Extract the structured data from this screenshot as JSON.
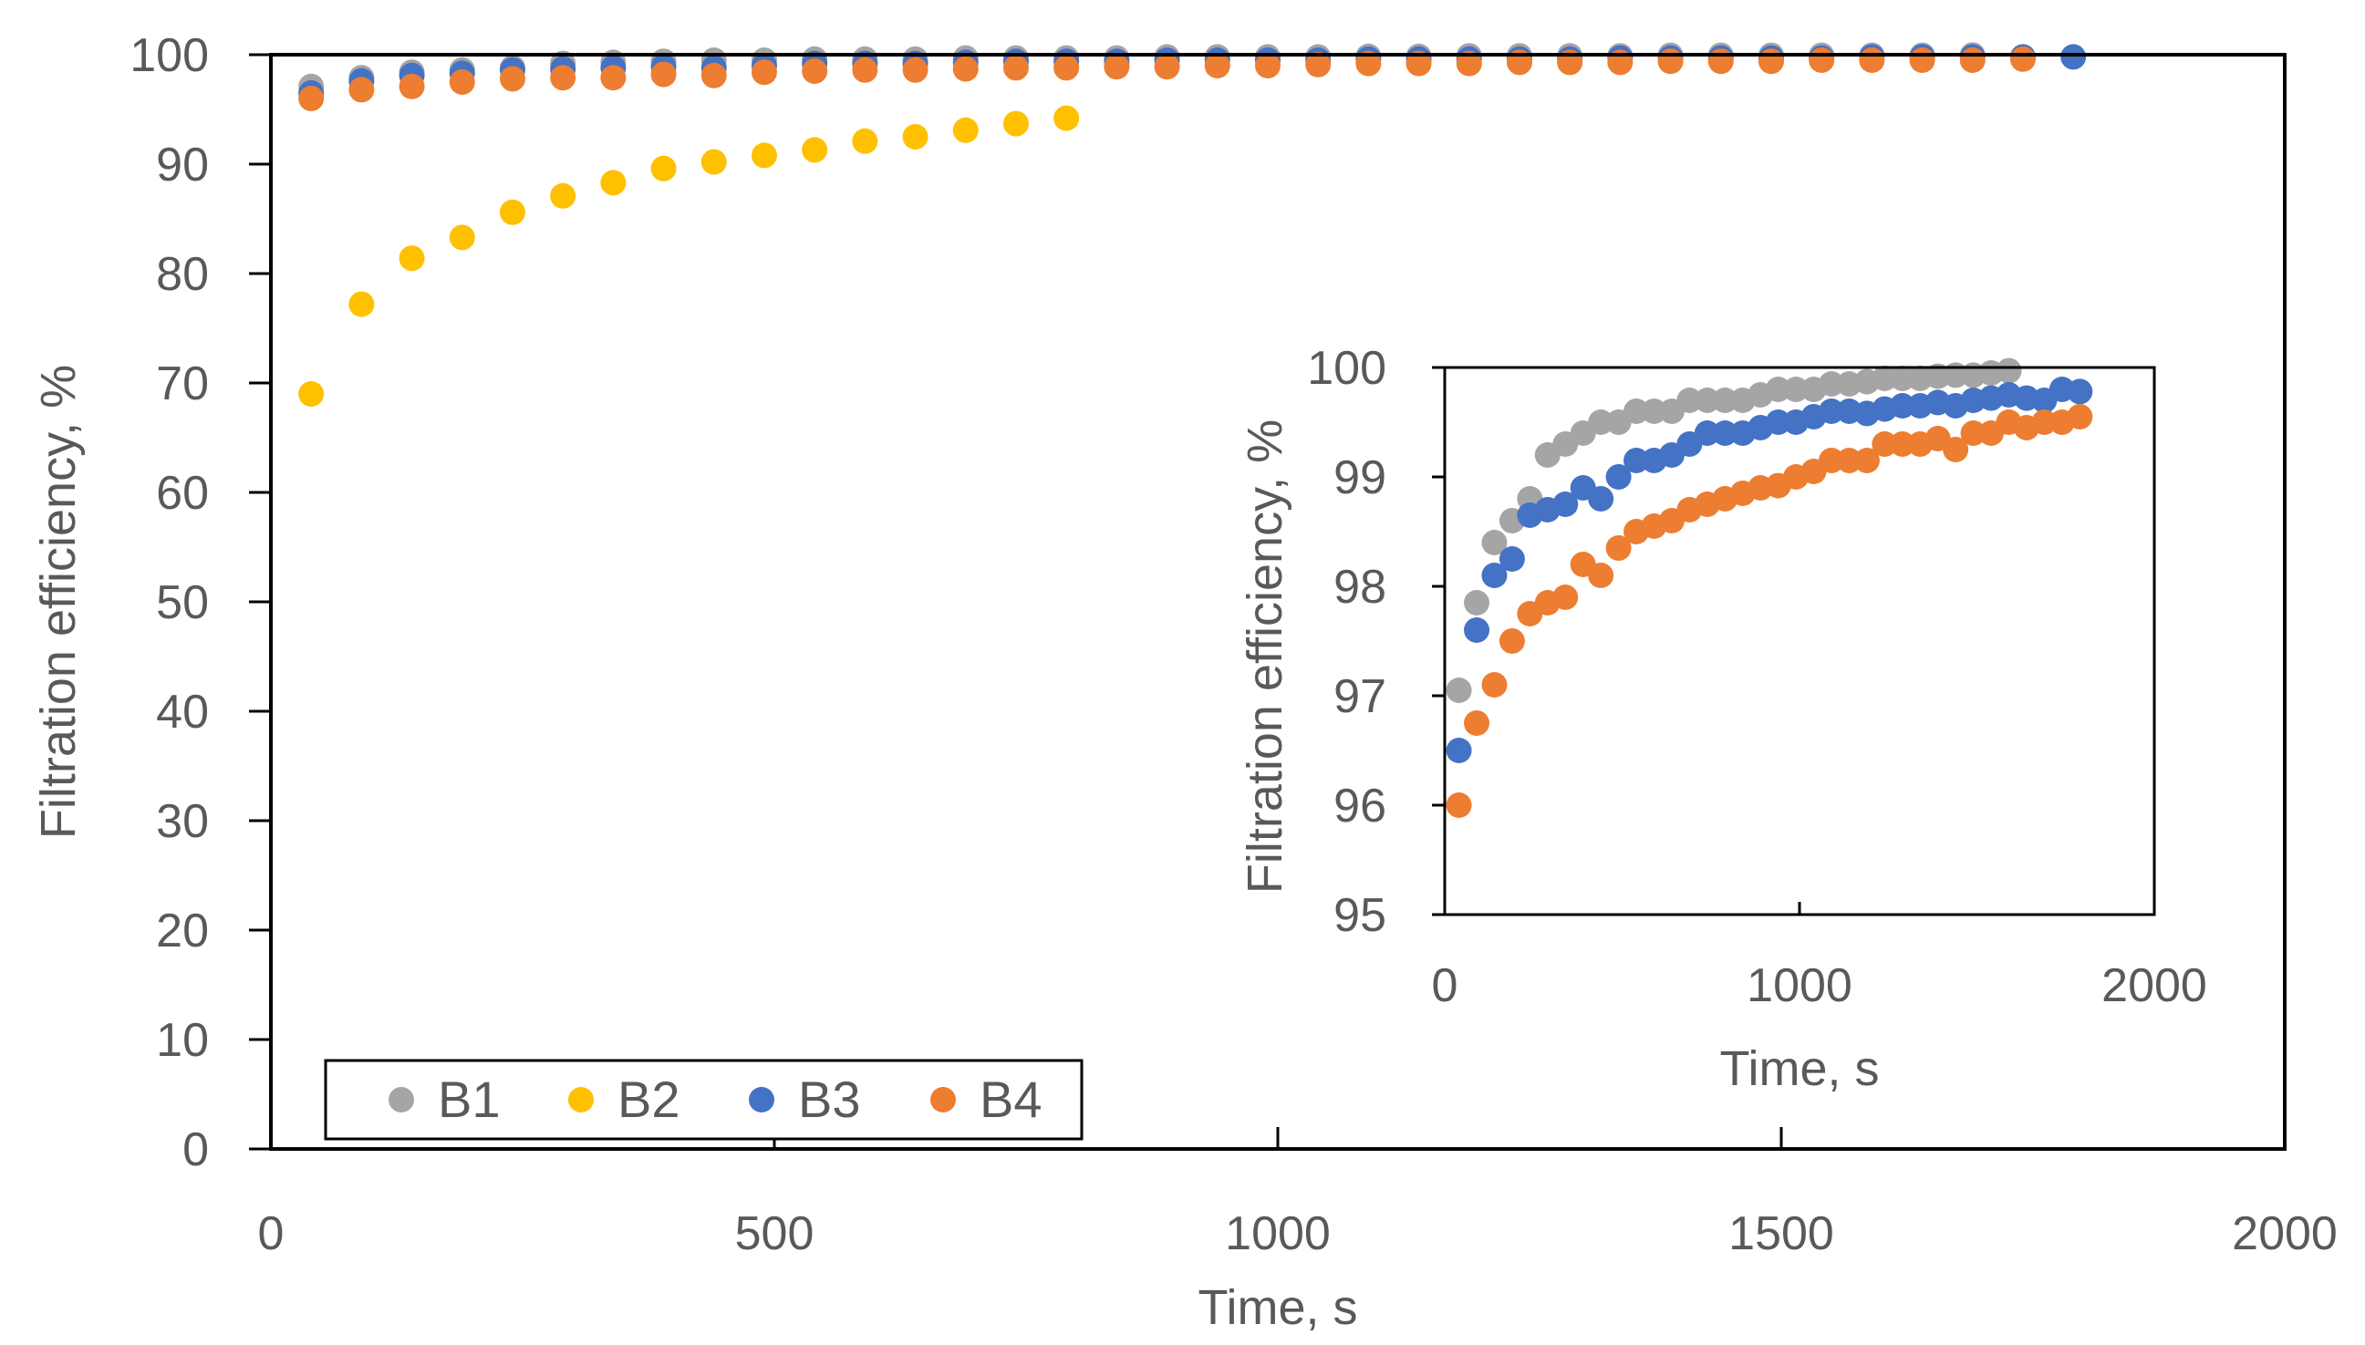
{
  "colors": {
    "B1": "#a5a5a5",
    "B2": "#ffc000",
    "B3": "#4472c4",
    "B4": "#ed7d31",
    "text": "#595959",
    "axis": "#000000"
  },
  "chart_data": [
    {
      "id": "main",
      "type": "scatter",
      "title": "",
      "xlabel": "Time, s",
      "ylabel": "Filtration efficiency, %",
      "xlim": [
        0,
        2000
      ],
      "ylim": [
        0,
        100
      ],
      "x_ticks": [
        0,
        500,
        1000,
        1500,
        2000
      ],
      "y_ticks": [
        0,
        10,
        20,
        30,
        40,
        50,
        60,
        70,
        80,
        90,
        100
      ],
      "x_tick_labels": [
        "0",
        "500",
        "1000",
        "1500",
        "2000"
      ],
      "y_tick_labels": [
        "0",
        "10",
        "20",
        "30",
        "40",
        "50",
        "60",
        "70",
        "80",
        "90",
        "100"
      ],
      "legend_position": "bottom-left",
      "legend": [
        "B1",
        "B2",
        "B3",
        "B4"
      ],
      "series": [
        {
          "name": "B1",
          "color": "#a5a5a5",
          "x": [
            40,
            90,
            140,
            190,
            240,
            290,
            340,
            390,
            440,
            490,
            540,
            590,
            640,
            690,
            740,
            790,
            840,
            890,
            940,
            990,
            1040,
            1090,
            1140,
            1190,
            1240,
            1290,
            1340,
            1390,
            1440,
            1490,
            1540,
            1590,
            1640,
            1690
          ],
          "y": [
            97.1,
            97.9,
            98.4,
            98.6,
            98.8,
            99.2,
            99.3,
            99.4,
            99.5,
            99.5,
            99.6,
            99.6,
            99.6,
            99.7,
            99.7,
            99.7,
            99.7,
            99.8,
            99.8,
            99.8,
            99.8,
            99.85,
            99.85,
            99.9,
            99.9,
            99.9,
            99.9,
            99.95,
            99.95,
            99.95,
            99.95,
            99.95,
            99.95,
            99.97
          ]
        },
        {
          "name": "B2",
          "color": "#ffc000",
          "x": [
            40,
            90,
            140,
            190,
            240,
            290,
            340,
            390,
            440,
            490,
            540,
            590,
            640,
            690,
            740,
            790
          ],
          "y": [
            69.0,
            77.2,
            81.4,
            83.3,
            85.6,
            87.1,
            88.3,
            89.6,
            90.2,
            90.8,
            91.3,
            92.1,
            92.5,
            93.1,
            93.7,
            94.2
          ]
        },
        {
          "name": "B3",
          "color": "#4472c4",
          "x": [
            40,
            90,
            140,
            190,
            240,
            290,
            340,
            390,
            440,
            490,
            540,
            590,
            640,
            690,
            740,
            790,
            840,
            890,
            940,
            990,
            1040,
            1090,
            1140,
            1190,
            1240,
            1290,
            1340,
            1390,
            1440,
            1490,
            1540,
            1590,
            1640,
            1690,
            1740,
            1790
          ],
          "y": [
            96.5,
            97.6,
            98.1,
            98.3,
            98.6,
            98.7,
            98.8,
            98.9,
            98.8,
            99.0,
            99.2,
            99.2,
            99.2,
            99.3,
            99.4,
            99.4,
            99.4,
            99.5,
            99.5,
            99.5,
            99.5,
            99.6,
            99.6,
            99.6,
            99.6,
            99.6,
            99.7,
            99.7,
            99.7,
            99.7,
            99.7,
            99.8,
            99.8,
            99.8,
            99.8,
            99.8
          ]
        },
        {
          "name": "B4",
          "color": "#ed7d31",
          "x": [
            40,
            90,
            140,
            190,
            240,
            290,
            340,
            390,
            440,
            490,
            540,
            590,
            640,
            690,
            740,
            790,
            840,
            890,
            940,
            990,
            1040,
            1090,
            1140,
            1190,
            1240,
            1290,
            1340,
            1390,
            1440,
            1490,
            1540,
            1590,
            1640,
            1690,
            1740
          ],
          "y": [
            96.0,
            96.8,
            97.1,
            97.5,
            97.8,
            97.9,
            97.9,
            98.2,
            98.1,
            98.4,
            98.5,
            98.6,
            98.6,
            98.7,
            98.8,
            98.8,
            98.9,
            98.9,
            99.0,
            99.0,
            99.1,
            99.2,
            99.2,
            99.2,
            99.3,
            99.3,
            99.3,
            99.4,
            99.4,
            99.4,
            99.5,
            99.5,
            99.5,
            99.5,
            99.6
          ]
        }
      ]
    },
    {
      "id": "inset",
      "type": "scatter",
      "title": "",
      "xlabel": "Time, s",
      "ylabel": "Filtration efficiency, %",
      "xlim": [
        0,
        2000
      ],
      "ylim": [
        95,
        100
      ],
      "x_ticks": [
        0,
        1000,
        2000
      ],
      "y_ticks": [
        95,
        96,
        97,
        98,
        99,
        100
      ],
      "x_tick_labels": [
        "0",
        "1000",
        "2000"
      ],
      "y_tick_labels": [
        "95",
        "96",
        "97",
        "98",
        "99",
        "100"
      ],
      "legend_position": "none",
      "series": [
        {
          "name": "B1",
          "color": "#a5a5a5",
          "x": [
            40,
            90,
            140,
            190,
            240,
            290,
            340,
            390,
            440,
            490,
            540,
            590,
            640,
            690,
            740,
            790,
            840,
            890,
            940,
            990,
            1040,
            1090,
            1140,
            1190,
            1240,
            1290,
            1340,
            1390,
            1440,
            1490,
            1540,
            1590
          ],
          "y": [
            97.05,
            97.85,
            98.4,
            98.6,
            98.8,
            99.2,
            99.3,
            99.4,
            99.5,
            99.5,
            99.6,
            99.6,
            99.6,
            99.7,
            99.7,
            99.7,
            99.7,
            99.75,
            99.8,
            99.8,
            99.8,
            99.85,
            99.85,
            99.87,
            99.9,
            99.9,
            99.9,
            99.92,
            99.93,
            99.93,
            99.95,
            99.97
          ]
        },
        {
          "name": "B3",
          "color": "#4472c4",
          "x": [
            40,
            90,
            140,
            190,
            240,
            290,
            340,
            390,
            440,
            490,
            540,
            590,
            640,
            690,
            740,
            790,
            840,
            890,
            940,
            990,
            1040,
            1090,
            1140,
            1190,
            1240,
            1290,
            1340,
            1390,
            1440,
            1490,
            1540,
            1590,
            1640,
            1690,
            1740,
            1790
          ],
          "y": [
            96.5,
            97.6,
            98.1,
            98.25,
            98.65,
            98.7,
            98.75,
            98.9,
            98.8,
            99.0,
            99.15,
            99.15,
            99.2,
            99.3,
            99.4,
            99.4,
            99.4,
            99.45,
            99.5,
            99.5,
            99.55,
            99.6,
            99.6,
            99.58,
            99.62,
            99.65,
            99.65,
            99.68,
            99.65,
            99.7,
            99.72,
            99.75,
            99.72,
            99.7,
            99.8,
            99.78
          ]
        },
        {
          "name": "B4",
          "color": "#ed7d31",
          "x": [
            40,
            90,
            140,
            190,
            240,
            290,
            340,
            390,
            440,
            490,
            540,
            590,
            640,
            690,
            740,
            790,
            840,
            890,
            940,
            990,
            1040,
            1090,
            1140,
            1190,
            1240,
            1290,
            1340,
            1390,
            1440,
            1490,
            1540,
            1590,
            1640,
            1690,
            1740,
            1790
          ],
          "y": [
            96.0,
            96.75,
            97.1,
            97.5,
            97.75,
            97.85,
            97.9,
            98.2,
            98.1,
            98.35,
            98.5,
            98.55,
            98.6,
            98.7,
            98.75,
            98.8,
            98.85,
            98.9,
            98.92,
            99.0,
            99.05,
            99.15,
            99.15,
            99.15,
            99.3,
            99.3,
            99.3,
            99.35,
            99.25,
            99.4,
            99.4,
            99.5,
            99.45,
            99.5,
            99.5,
            99.55
          ]
        }
      ]
    }
  ]
}
